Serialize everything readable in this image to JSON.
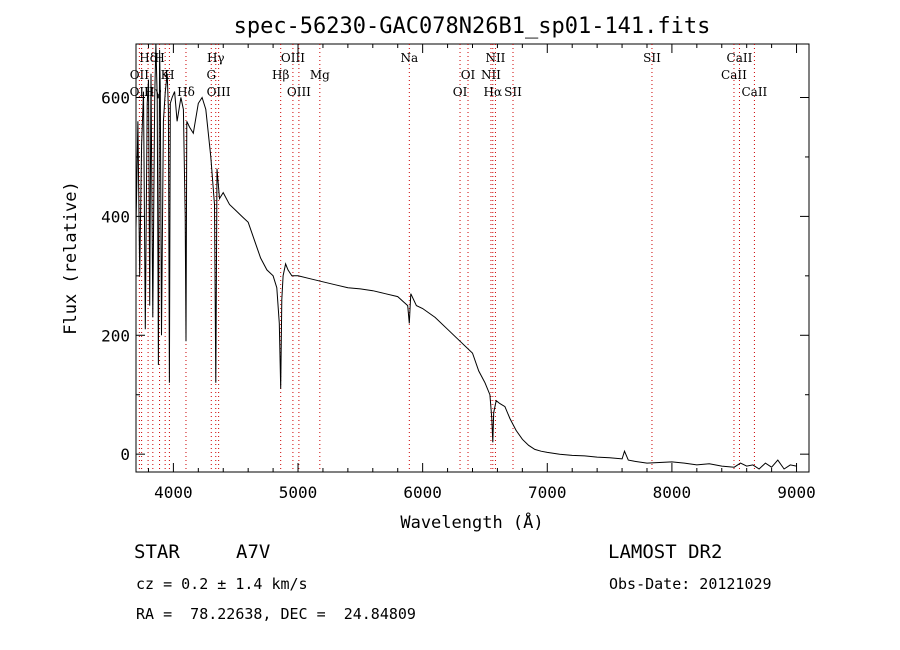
{
  "chart_data": {
    "type": "line",
    "title": "spec-56230-GAC078N26B1_sp01-141.fits",
    "xlabel": "Wavelength (Å)",
    "ylabel": "Flux (relative)",
    "xlim": [
      3700,
      9100
    ],
    "ylim": [
      -30,
      690
    ],
    "xticks": [
      4000,
      5000,
      6000,
      7000,
      8000,
      9000
    ],
    "yticks": [
      0,
      200,
      400,
      600
    ],
    "grid": false,
    "colors": {
      "spectrum": "#000000",
      "line_markers": "#cc0000",
      "axes": "#000000"
    },
    "series": [
      {
        "x": [
          3700,
          3715,
          3730,
          3745,
          3760,
          3775,
          3790,
          3800,
          3810,
          3820,
          3835,
          3850,
          3860,
          3870,
          3880,
          3889,
          3895,
          3905,
          3920,
          3935,
          3950,
          3960,
          3968,
          3975,
          3990,
          4010,
          4030,
          4060,
          4080,
          4095,
          4101,
          4108,
          4130,
          4160,
          4200,
          4230,
          4260,
          4300,
          4330,
          4340,
          4350,
          4370,
          4400,
          4450,
          4500,
          4550,
          4600,
          4650,
          4700,
          4750,
          4800,
          4830,
          4850,
          4861,
          4870,
          4880,
          4900,
          4920,
          4950,
          5000,
          5100,
          5200,
          5300,
          5400,
          5500,
          5600,
          5700,
          5800,
          5880,
          5893,
          5905,
          5950,
          6000,
          6100,
          6200,
          6300,
          6400,
          6450,
          6500,
          6540,
          6555,
          6563,
          6570,
          6590,
          6620,
          6660,
          6700,
          6750,
          6800,
          6850,
          6900,
          6950,
          7000,
          7100,
          7200,
          7300,
          7400,
          7500,
          7600,
          7620,
          7650,
          7700,
          7800,
          7900,
          8000,
          8100,
          8200,
          8300,
          8400,
          8500,
          8550,
          8600,
          8650,
          8700,
          8750,
          8800,
          8850,
          8900,
          8950,
          9000
        ],
        "y": [
          380,
          560,
          300,
          520,
          610,
          210,
          590,
          630,
          250,
          640,
          230,
          600,
          690,
          600,
          150,
          680,
          610,
          200,
          560,
          610,
          640,
          580,
          120,
          590,
          600,
          610,
          560,
          600,
          580,
          400,
          190,
          560,
          550,
          540,
          590,
          600,
          580,
          500,
          420,
          120,
          480,
          430,
          440,
          420,
          410,
          400,
          390,
          360,
          330,
          310,
          300,
          280,
          220,
          110,
          260,
          300,
          320,
          310,
          300,
          300,
          295,
          290,
          285,
          280,
          278,
          275,
          270,
          265,
          250,
          220,
          270,
          250,
          245,
          230,
          210,
          190,
          170,
          140,
          120,
          100,
          60,
          20,
          70,
          90,
          85,
          80,
          60,
          40,
          25,
          15,
          8,
          5,
          3,
          0,
          -2,
          -3,
          -5,
          -6,
          -8,
          5,
          -10,
          -12,
          -15,
          -14,
          -13,
          -15,
          -18,
          -16,
          -20,
          -22,
          -15,
          -20,
          -18,
          -25,
          -15,
          -22,
          -10,
          -25,
          -18,
          -20
        ]
      }
    ],
    "spectral_lines": [
      {
        "label": "Hδ",
        "x": 3797,
        "row": 0
      },
      {
        "label": "OII",
        "x": 3727,
        "row": 1
      },
      {
        "label": "OIII",
        "x": 3745,
        "row": 2
      },
      {
        "label": "Hγ",
        "x": 3835,
        "row": 2
      },
      {
        "label": "H",
        "x": 3889,
        "row": 0
      },
      {
        "label": "K",
        "x": 3934,
        "row": 1
      },
      {
        "label": "H",
        "x": 3968,
        "row": 1
      },
      {
        "label": "Hδ",
        "x": 4101,
        "row": 2
      },
      {
        "label": "Hγ",
        "x": 4340,
        "row": 0
      },
      {
        "label": "G",
        "x": 4304,
        "row": 1
      },
      {
        "label": "OIII",
        "x": 4363,
        "row": 2
      },
      {
        "label": "OIII",
        "x": 4959,
        "row": 0
      },
      {
        "label": "Hβ",
        "x": 4861,
        "row": 1
      },
      {
        "label": "OIII",
        "x": 5007,
        "row": 2
      },
      {
        "label": "Mg",
        "x": 5175,
        "row": 1
      },
      {
        "label": "Na",
        "x": 5893,
        "row": 0
      },
      {
        "label": "OI",
        "x": 6364,
        "row": 1
      },
      {
        "label": "OI",
        "x": 6300,
        "row": 2
      },
      {
        "label": "NII",
        "x": 6584,
        "row": 0
      },
      {
        "label": "NII",
        "x": 6548,
        "row": 1
      },
      {
        "label": "Hα",
        "x": 6563,
        "row": 2
      },
      {
        "label": "SII",
        "x": 6725,
        "row": 2
      },
      {
        "label": "SII",
        "x": 7840,
        "row": 0
      },
      {
        "label": "CaII",
        "x": 8542,
        "row": 0
      },
      {
        "label": "CaII",
        "x": 8498,
        "row": 1
      },
      {
        "label": "CaII",
        "x": 8662,
        "row": 2
      }
    ]
  },
  "info": {
    "object_class": "STAR",
    "subclass": "A7V",
    "survey": "LAMOST DR2",
    "cz_line": "cz = 0.2 ± 1.4 km/s",
    "obs_date": "Obs-Date: 20121029",
    "coords": "RA =  78.22638, DEC =  24.84809"
  }
}
